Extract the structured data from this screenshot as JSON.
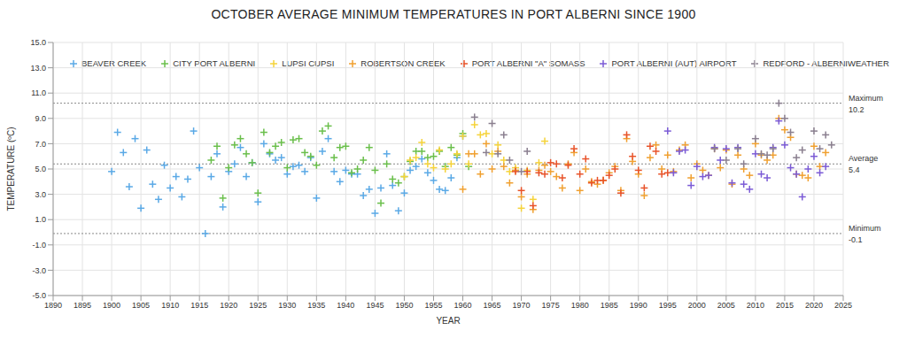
{
  "chart_data": {
    "type": "scatter",
    "title": "OCTOBER AVERAGE MINIMUM TEMPERATURES IN PORT ALBERNI SINCE 1900",
    "x_label": "YEAR",
    "y_label": "TEMPERATURE (ºC)",
    "xlim": [
      1890,
      2025
    ],
    "xticks": [
      1890,
      1895,
      1900,
      1905,
      1910,
      1915,
      1920,
      1925,
      1930,
      1935,
      1940,
      1945,
      1950,
      1955,
      1960,
      1965,
      1970,
      1975,
      1980,
      1985,
      1990,
      1995,
      2000,
      2005,
      2010,
      2015,
      2020,
      2025
    ],
    "ylim": [
      -5,
      15
    ],
    "yticks": [
      {
        "value": -5,
        "label": "-5.0"
      },
      {
        "value": -3,
        "label": "-3.0"
      },
      {
        "value": -1,
        "label": "-1.0"
      },
      {
        "value": 1,
        "label": "1.0"
      },
      {
        "value": 3,
        "label": "3.0"
      },
      {
        "value": 5,
        "label": "5.0"
      },
      {
        "value": 7,
        "label": "7.0"
      },
      {
        "value": 9,
        "label": "9.0"
      },
      {
        "value": 11,
        "label": "11.0"
      },
      {
        "value": 13,
        "label": "13.0"
      },
      {
        "value": 15,
        "label": "15.0"
      }
    ],
    "grid": true,
    "marker": "cross",
    "legend": "top",
    "annotations": [
      {
        "label": "Maximum",
        "value": 10.2
      },
      {
        "label": "Average",
        "value": 5.4
      },
      {
        "label": "Minimum",
        "value": -0.1
      }
    ],
    "series": [
      {
        "name": "BEAVER CREEK",
        "color": "#5aa9e6",
        "x": [
          1900,
          1901,
          1902,
          1903,
          1904,
          1905,
          1906,
          1907,
          1908,
          1909,
          1910,
          1911,
          1912,
          1913,
          1914,
          1915,
          1916,
          1917,
          1918,
          1919,
          1920,
          1921,
          1922,
          1923,
          1924,
          1925,
          1926,
          1927,
          1928,
          1929,
          1930,
          1931,
          1932,
          1933,
          1934,
          1935,
          1936,
          1937,
          1938,
          1939,
          1940,
          1941,
          1942,
          1943,
          1944,
          1945,
          1946,
          1947,
          1948,
          1949,
          1950,
          1951,
          1952,
          1953,
          1954,
          1955,
          1956,
          1957,
          1958,
          1959,
          1960
        ],
        "values": [
          4.8,
          7.9,
          6.3,
          3.6,
          7.4,
          1.9,
          6.5,
          3.8,
          2.6,
          5.3,
          3.5,
          4.4,
          2.8,
          4.2,
          8.0,
          5.1,
          -0.1,
          4.4,
          6.2,
          2.0,
          4.8,
          5.4,
          6.7,
          4.4,
          5.5,
          2.4,
          7.0,
          6.2,
          5.7,
          5.9,
          4.6,
          5.2,
          5.3,
          4.8,
          5.9,
          2.7,
          6.4,
          7.4,
          4.8,
          4.0,
          4.9,
          4.6,
          4.6,
          2.9,
          3.4,
          1.5,
          3.5,
          6.2,
          3.7,
          1.7,
          3.1,
          4.9,
          5.2,
          5.8,
          4.7,
          4.1,
          3.4,
          3.3,
          4.3,
          5.9,
          7.6
        ]
      },
      {
        "name": "CITY PORT ALBERNI",
        "color": "#6abf4b",
        "x": [
          1917,
          1918,
          1919,
          1920,
          1921,
          1922,
          1923,
          1924,
          1925,
          1926,
          1927,
          1928,
          1929,
          1930,
          1931,
          1932,
          1933,
          1934,
          1935,
          1936,
          1937,
          1938,
          1939,
          1940,
          1941,
          1942,
          1943,
          1944,
          1945,
          1946,
          1947,
          1948,
          1949,
          1950,
          1951,
          1952,
          1953,
          1954,
          1955,
          1956,
          1957,
          1958,
          1959,
          1960,
          1961
        ],
        "values": [
          5.7,
          6.8,
          2.7,
          5.1,
          6.9,
          7.4,
          6.2,
          5.5,
          3.1,
          7.9,
          6.3,
          6.8,
          7.1,
          5.1,
          7.3,
          7.4,
          6.3,
          6.0,
          5.3,
          8.0,
          8.4,
          5.9,
          6.7,
          6.8,
          4.7,
          5.0,
          5.7,
          6.7,
          4.9,
          2.3,
          5.4,
          4.2,
          3.9,
          4.4,
          5.6,
          6.4,
          6.4,
          5.9,
          6.0,
          6.4,
          5.2,
          6.7,
          6.1,
          7.8,
          5.2
        ]
      },
      {
        "name": "LUPSI CUPSI",
        "color": "#f5d33a",
        "x": [
          1950,
          1951,
          1952,
          1953,
          1954,
          1955,
          1956,
          1957,
          1958,
          1959,
          1960,
          1961,
          1962,
          1963,
          1964,
          1965,
          1966,
          1967,
          1968,
          1969,
          1970,
          1971,
          1972,
          1973,
          1974
        ],
        "values": [
          4.4,
          5.7,
          5.9,
          7.1,
          5.4,
          5.1,
          6.5,
          5.0,
          5.4,
          6.2,
          7.6,
          5.4,
          8.5,
          7.7,
          7.8,
          6.2,
          6.9,
          5.7,
          4.8,
          5.1,
          1.9,
          4.9,
          2.6,
          5.5,
          7.2
        ]
      },
      {
        "name": "ROBERTSON CREEK",
        "color": "#f0a030",
        "x": [
          1960,
          1961,
          1962,
          1963,
          1964,
          1965,
          1966,
          1967,
          1968,
          1969,
          1970,
          1971,
          1972,
          1973,
          1974,
          1975,
          1976,
          1977,
          1978,
          1979,
          1980,
          1981,
          1982,
          1983,
          1984,
          1985,
          1986,
          1987,
          1988,
          1989,
          1990,
          1991,
          1992,
          1993,
          1994,
          1995,
          1996,
          1997,
          1998,
          1999,
          2000,
          2001,
          2002,
          2003,
          2004,
          2005,
          2006,
          2007,
          2008,
          2009,
          2010,
          2011,
          2012,
          2013,
          2014,
          2015,
          2016,
          2017,
          2018,
          2019,
          2020,
          2021,
          2022
        ],
        "values": [
          3.4,
          6.2,
          6.2,
          4.6,
          7.0,
          5.0,
          6.4,
          5.2,
          3.9,
          4.9,
          2.8,
          4.6,
          1.8,
          4.9,
          5.3,
          4.8,
          4.4,
          3.5,
          5.4,
          6.3,
          3.3,
          5.0,
          4.0,
          3.8,
          4.1,
          4.7,
          5.2,
          3.3,
          7.4,
          5.6,
          4.6,
          2.9,
          5.9,
          6.9,
          5.0,
          6.1,
          4.8,
          6.5,
          6.9,
          4.3,
          5.4,
          4.9,
          4.5,
          6.6,
          5.1,
          6.5,
          3.8,
          6.1,
          5.0,
          4.5,
          7.0,
          6.1,
          5.7,
          6.1,
          9.0,
          8.1,
          7.5,
          4.6,
          4.5,
          4.3,
          6.8,
          5.2,
          6.3
        ]
      },
      {
        "name": "PORT ALBERNI \"A\" SOMASS",
        "color": "#e8532a",
        "x": [
          1969,
          1970,
          1971,
          1972,
          1973,
          1974,
          1975,
          1976,
          1977,
          1978,
          1979,
          1980,
          1981,
          1982,
          1983,
          1984,
          1985,
          1986,
          1987,
          1988,
          1989,
          1990,
          1991,
          1992,
          1993,
          1994,
          1995
        ],
        "values": [
          4.8,
          3.3,
          4.8,
          2.1,
          4.7,
          4.6,
          5.5,
          5.4,
          4.3,
          5.3,
          6.6,
          4.6,
          5.8,
          3.9,
          4.1,
          4.1,
          4.5,
          5.0,
          3.1,
          7.7,
          6.0,
          4.9,
          3.5,
          6.8,
          6.4,
          4.6,
          4.7
        ]
      },
      {
        "name": "PORT ALBERNI (AUT) AIRPORT",
        "color": "#7b5bd6",
        "x": [
          1995,
          1996,
          1997,
          1998,
          1999,
          2000,
          2001,
          2002,
          2003,
          2004,
          2005,
          2006,
          2007,
          2008,
          2009,
          2010,
          2011,
          2012,
          2013,
          2014,
          2015,
          2016,
          2017,
          2018,
          2019,
          2020,
          2021,
          2022
        ],
        "values": [
          8.0,
          4.7,
          6.4,
          6.5,
          3.7,
          5.2,
          4.4,
          4.5,
          6.7,
          5.7,
          6.6,
          3.9,
          6.7,
          3.8,
          3.4,
          6.2,
          4.6,
          4.3,
          6.7,
          8.8,
          6.9,
          5.1,
          4.6,
          2.8,
          5.0,
          6.0,
          4.7,
          5.2
        ]
      },
      {
        "name": "REDFORD - ALBERNIWEATHER",
        "color": "#8a7f8f",
        "x": [
          1962,
          1964,
          1965,
          1966,
          1967,
          1968,
          1970,
          1971,
          2003,
          2005,
          2007,
          2008,
          2010,
          2011,
          2012,
          2013,
          2014,
          2015,
          2016,
          2017,
          2018,
          2020,
          2021,
          2022,
          2023
        ],
        "values": [
          9.1,
          6.3,
          8.6,
          6.2,
          7.7,
          5.7,
          4.8,
          6.4,
          6.6,
          5.7,
          6.6,
          5.4,
          7.4,
          6.2,
          6.1,
          6.6,
          10.2,
          9.0,
          7.9,
          5.9,
          6.5,
          8.0,
          6.6,
          7.7,
          6.9
        ]
      }
    ]
  }
}
